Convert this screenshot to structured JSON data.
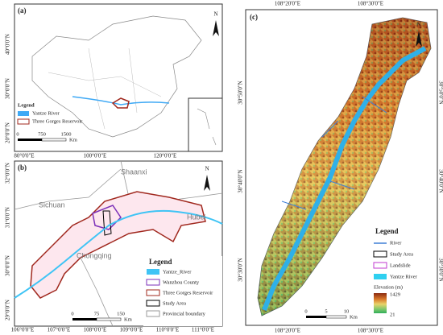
{
  "panel_a": {
    "label": "(a)",
    "north": "N",
    "lat_labels": [
      "40°0'0\"N",
      "30°0'0\"N",
      "20°0'0\"N"
    ],
    "lon_labels": [
      "80°0'0\"E",
      "100°0'0\"E",
      "120°0'0\"E"
    ],
    "legend": {
      "title": "Legend",
      "items": [
        "Yantze River",
        "Three Gorges Reservoir"
      ]
    },
    "scale": [
      "0",
      "750",
      "1500",
      "Km"
    ]
  },
  "panel_b": {
    "label": "(b)",
    "north": "N",
    "places": [
      "Shaanxi",
      "Sichuan",
      "Hubei",
      "Chongqing"
    ],
    "lat_labels": [
      "32°0'0\"N",
      "31°0'0\"N",
      "30°0'0\"N",
      "29°0'0\"N"
    ],
    "lon_labels": [
      "106°0'0\"E",
      "107°0'0\"E",
      "108°0'0\"E",
      "109°0'0\"E",
      "110°0'0\"E",
      "111°0'0\"E"
    ],
    "legend": {
      "title": "Legend",
      "items": [
        "Yantze_River",
        "Wanzhou County",
        "Three Gorges Reservoir",
        "Study Area",
        "Provincial boundary"
      ]
    },
    "scale": [
      "0",
      "75",
      "150",
      "Km"
    ]
  },
  "panel_c": {
    "label": "(c)",
    "north": "N",
    "lon_labels": [
      "108°20'0\"E",
      "108°30'0\"E"
    ],
    "lat_labels": [
      "30°50'0\"N",
      "30°40'0\"N",
      "30°30'0\"N"
    ],
    "legend": {
      "title": "Legend",
      "items": [
        "River",
        "Study Area",
        "Landslide",
        "Yantze River"
      ],
      "elevation_title": "Elevation (m)",
      "elevation_max": "1429",
      "elevation_min": "21"
    },
    "scale": [
      "0",
      "5",
      "10",
      "Km"
    ]
  }
}
